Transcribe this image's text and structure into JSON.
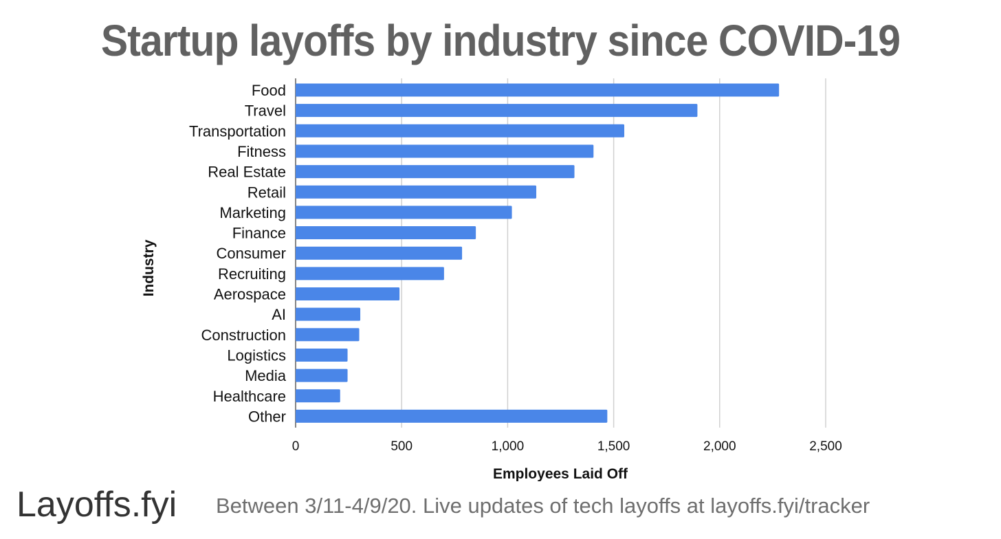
{
  "colors": {
    "bar": "#4a86e8",
    "grid": "#d0d0d0",
    "title": "#616161",
    "axis_text": "#111111"
  },
  "chart_data": {
    "type": "bar",
    "orientation": "horizontal",
    "title": "Startup layoffs by industry since COVID-19",
    "xlabel": "Employees Laid Off",
    "ylabel": "Industry",
    "xlim": [
      0,
      2500
    ],
    "xticks": [
      0,
      500,
      1000,
      1500,
      2000,
      2500
    ],
    "xtick_labels": [
      "0",
      "500",
      "1,000",
      "1,500",
      "2,000",
      "2,500"
    ],
    "grid": "vertical",
    "categories": [
      "Food",
      "Travel",
      "Transportation",
      "Fitness",
      "Real Estate",
      "Retail",
      "Marketing",
      "Finance",
      "Consumer",
      "Recruiting",
      "Aerospace",
      "AI",
      "Construction",
      "Logistics",
      "Media",
      "Healthcare",
      "Other"
    ],
    "values": [
      2280,
      1895,
      1550,
      1405,
      1315,
      1135,
      1020,
      850,
      785,
      700,
      490,
      305,
      300,
      245,
      245,
      210,
      1470
    ]
  },
  "footer": {
    "brand": "Layoffs.fyi",
    "note": "Between 3/11-4/9/20. Live updates of tech layoffs at layoffs.fyi/tracker"
  }
}
